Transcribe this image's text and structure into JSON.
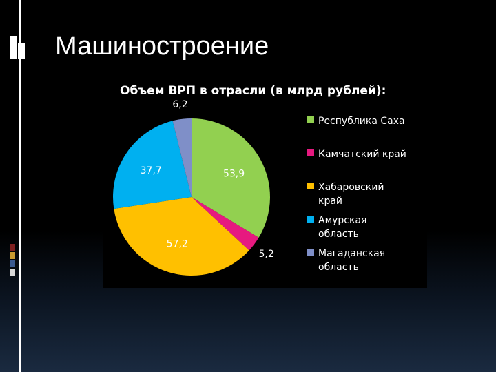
{
  "slide": {
    "title": "Машиностроение",
    "colors": {
      "background": "#000000",
      "title": "#ffffff",
      "chart_panel": "#000000"
    }
  },
  "chart_data": {
    "type": "pie",
    "title": "Объем ВРП в отрасли (в млрд рублей):",
    "categories": [
      "Республика Саха",
      "Камчатский край",
      "Хабаровский край",
      "Амурская область",
      "Магаданская область"
    ],
    "legend_lines": [
      [
        "Республика Саха"
      ],
      [
        "Камчатский край"
      ],
      [
        "Хабаровский",
        "край"
      ],
      [
        "Амурская",
        "область"
      ],
      [
        "Магаданская",
        "область"
      ]
    ],
    "values": [
      53.9,
      5.2,
      57.2,
      37.7,
      6.2
    ],
    "data_labels": [
      "53,9",
      "5,2",
      "57,2",
      "37,7",
      "6,2"
    ],
    "colors": [
      "#92d050",
      "#e6197f",
      "#ffc000",
      "#00b0f0",
      "#7f8fc8"
    ],
    "legend_position": "right"
  }
}
